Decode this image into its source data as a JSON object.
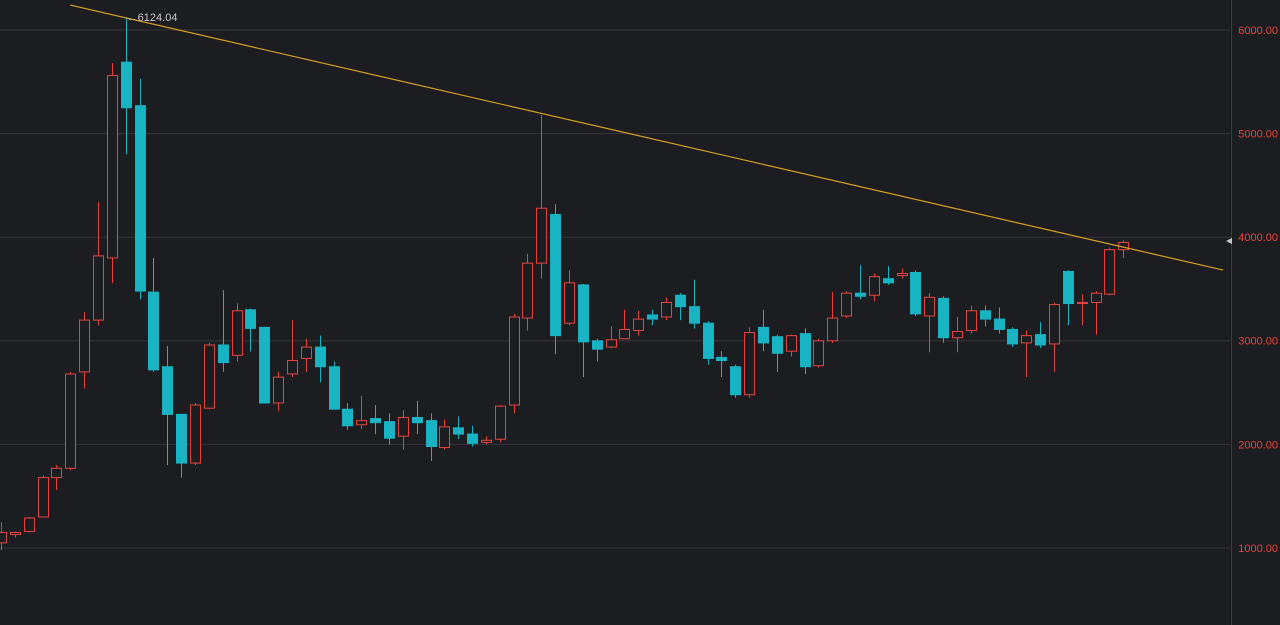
{
  "chart_data": {
    "type": "candlestick",
    "up_color": "#e8443f",
    "down_color": "#19b4c4",
    "trendline_color": "#d6a21e",
    "grid": true,
    "ylim": [
      257,
      6290
    ],
    "xlim": [
      -0.07,
      88.7
    ],
    "yticks": [
      {
        "value": 1000,
        "label": "1000.00"
      },
      {
        "value": 2000,
        "label": "2000.00"
      },
      {
        "value": 3000,
        "label": "3000.00"
      },
      {
        "value": 4000,
        "label": "4000.00"
      },
      {
        "value": 5000,
        "label": "5000.00"
      },
      {
        "value": 6000,
        "label": "6000.00"
      }
    ],
    "max_annotation": {
      "index": 9,
      "value": 6124.04,
      "label": "←6124.04"
    },
    "trendline": {
      "x": [
        5,
        88.2
      ],
      "y": [
        6241,
        3683
      ]
    },
    "open": [
      1050,
      1130,
      1160,
      1300,
      1680,
      1770,
      2700,
      3200,
      3800,
      5690,
      5270,
      3470,
      2750,
      2290,
      1820,
      2350,
      2960,
      2860,
      3300,
      3130,
      2400,
      2680,
      2830,
      2940,
      2750,
      2340,
      2190,
      2250,
      2220,
      2080,
      2260,
      2230,
      1970,
      2160,
      2100,
      2020,
      2050,
      2380,
      3220,
      3750,
      4220,
      3170,
      3540,
      3000,
      2940,
      3020,
      3100,
      3250,
      3230,
      3440,
      3330,
      3170,
      2840,
      2750,
      2480,
      3130,
      3040,
      2900,
      3070,
      2760,
      3000,
      3240,
      3460,
      3440,
      3600,
      3630,
      3660,
      3240,
      3410,
      3030,
      3100,
      3290,
      3210,
      3110,
      2980,
      3060,
      2970,
      3670,
      3360,
      3370,
      3450,
      3880
    ],
    "high": [
      1250,
      1160,
      1300,
      1700,
      1800,
      2700,
      3280,
      4340,
      5680,
      6124.04,
      5530,
      3800,
      2950,
      2290,
      2400,
      2980,
      3490,
      3360,
      3310,
      3130,
      2700,
      3200,
      3020,
      3050,
      2800,
      2400,
      2470,
      2380,
      2300,
      2330,
      2420,
      2300,
      2240,
      2270,
      2180,
      2080,
      2380,
      3260,
      3840,
      5180,
      4320,
      3680,
      3550,
      3020,
      3140,
      3300,
      3290,
      3300,
      3420,
      3460,
      3590,
      3190,
      2900,
      2770,
      3130,
      3300,
      3060,
      3060,
      3120,
      3020,
      3470,
      3480,
      3730,
      3650,
      3720,
      3700,
      3680,
      3460,
      3430,
      3230,
      3340,
      3340,
      3320,
      3130,
      3100,
      3180,
      3370,
      3680,
      3450,
      3480,
      3900,
      3970
    ],
    "low": [
      980,
      1100,
      1150,
      1300,
      1560,
      1750,
      2540,
      3150,
      3560,
      4800,
      3400,
      2700,
      1800,
      1680,
      1800,
      2340,
      2700,
      2800,
      2900,
      2400,
      2320,
      2650,
      2700,
      2600,
      2340,
      2140,
      2150,
      2100,
      2000,
      1950,
      2100,
      1840,
      1950,
      2050,
      1980,
      2000,
      2020,
      2300,
      3100,
      3600,
      2870,
      3150,
      2650,
      2800,
      2930,
      3020,
      3050,
      3150,
      3200,
      3200,
      3120,
      2770,
      2650,
      2450,
      2450,
      2900,
      2700,
      2850,
      2680,
      2740,
      2980,
      3220,
      3400,
      3380,
      3540,
      3600,
      3240,
      2890,
      2980,
      2890,
      3070,
      3140,
      3070,
      2940,
      2650,
      2930,
      2700,
      3150,
      3150,
      3060,
      3440,
      3800
    ],
    "close": [
      1150,
      1150,
      1290,
      1680,
      1770,
      2680,
      3200,
      3820,
      5560,
      5250,
      3480,
      2720,
      2290,
      1820,
      2380,
      2960,
      2790,
      3290,
      3120,
      2400,
      2650,
      2810,
      2940,
      2750,
      2340,
      2180,
      2230,
      2210,
      2060,
      2260,
      2210,
      1980,
      2170,
      2100,
      2010,
      2040,
      2370,
      3230,
      3750,
      4280,
      3050,
      3560,
      2990,
      2920,
      3010,
      3110,
      3210,
      3210,
      3370,
      3330,
      3170,
      2830,
      2810,
      2480,
      3080,
      2980,
      2880,
      3050,
      2750,
      3000,
      3220,
      3460,
      3430,
      3620,
      3560,
      3650,
      3260,
      3420,
      3030,
      3090,
      3290,
      3210,
      3110,
      2970,
      3050,
      2960,
      3350,
      3360,
      3370,
      3460,
      3880,
      3950
    ]
  }
}
